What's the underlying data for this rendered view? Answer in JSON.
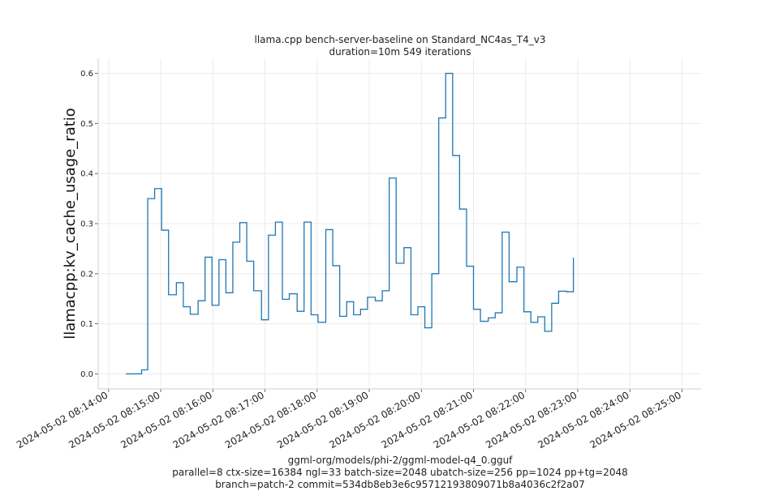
{
  "chart_data": {
    "type": "line",
    "title": "llama.cpp bench-server-baseline on Standard_NC4as_T4_v3",
    "subtitle": "duration=10m 549 iterations",
    "xlabel": "",
    "ylabel": "llamacpp:kv_cache_usage_ratio",
    "x_type": "time",
    "xlim": [
      "2024-05-02 08:13:48",
      "2024-05-02 08:25:22"
    ],
    "ylim": [
      -0.03,
      0.63
    ],
    "y_ticks": [
      0.0,
      0.1,
      0.2,
      0.3,
      0.4,
      0.5,
      0.6
    ],
    "y_tick_labels": [
      "0.0",
      "0.1",
      "0.2",
      "0.3",
      "0.4",
      "0.5",
      "0.6"
    ],
    "x_ticks": [
      "2024-05-02 08:14:00",
      "2024-05-02 08:15:00",
      "2024-05-02 08:16:00",
      "2024-05-02 08:17:00",
      "2024-05-02 08:18:00",
      "2024-05-02 08:19:00",
      "2024-05-02 08:20:00",
      "2024-05-02 08:21:00",
      "2024-05-02 08:22:00",
      "2024-05-02 08:23:00",
      "2024-05-02 08:24:00",
      "2024-05-02 08:25:00"
    ],
    "x_tick_labels": [
      "2024-05-02 08:14:00",
      "2024-05-02 08:15:00",
      "2024-05-02 08:16:00",
      "2024-05-02 08:17:00",
      "2024-05-02 08:18:00",
      "2024-05-02 08:19:00",
      "2024-05-02 08:20:00",
      "2024-05-02 08:21:00",
      "2024-05-02 08:22:00",
      "2024-05-02 08:23:00",
      "2024-05-02 08:24:00",
      "2024-05-02 08:25:00"
    ],
    "grid": true,
    "series": [
      {
        "color": "#1f77b4",
        "points": [
          [
            "2024-05-02 08:14:20",
            0.0
          ],
          [
            "2024-05-02 08:14:38",
            0.0
          ],
          [
            "2024-05-02 08:14:38",
            0.008
          ],
          [
            "2024-05-02 08:14:45",
            0.008
          ],
          [
            "2024-05-02 08:14:45",
            0.35
          ],
          [
            "2024-05-02 08:14:53",
            0.35
          ],
          [
            "2024-05-02 08:14:53",
            0.37
          ],
          [
            "2024-05-02 08:15:01",
            0.37
          ],
          [
            "2024-05-02 08:15:01",
            0.287
          ],
          [
            "2024-05-02 08:15:09",
            0.287
          ],
          [
            "2024-05-02 08:15:09",
            0.158
          ],
          [
            "2024-05-02 08:15:18",
            0.158
          ],
          [
            "2024-05-02 08:15:18",
            0.182
          ],
          [
            "2024-05-02 08:15:26",
            0.182
          ],
          [
            "2024-05-02 08:15:26",
            0.134
          ],
          [
            "2024-05-02 08:15:34",
            0.134
          ],
          [
            "2024-05-02 08:15:34",
            0.119
          ],
          [
            "2024-05-02 08:15:43",
            0.119
          ],
          [
            "2024-05-02 08:15:43",
            0.146
          ],
          [
            "2024-05-02 08:15:51",
            0.146
          ],
          [
            "2024-05-02 08:15:51",
            0.233
          ],
          [
            "2024-05-02 08:15:59",
            0.233
          ],
          [
            "2024-05-02 08:15:59",
            0.137
          ],
          [
            "2024-05-02 08:16:07",
            0.137
          ],
          [
            "2024-05-02 08:16:07",
            0.228
          ],
          [
            "2024-05-02 08:16:15",
            0.228
          ],
          [
            "2024-05-02 08:16:15",
            0.162
          ],
          [
            "2024-05-02 08:16:23",
            0.162
          ],
          [
            "2024-05-02 08:16:23",
            0.263
          ],
          [
            "2024-05-02 08:16:31",
            0.263
          ],
          [
            "2024-05-02 08:16:31",
            0.302
          ],
          [
            "2024-05-02 08:16:39",
            0.302
          ],
          [
            "2024-05-02 08:16:39",
            0.225
          ],
          [
            "2024-05-02 08:16:47",
            0.225
          ],
          [
            "2024-05-02 08:16:47",
            0.166
          ],
          [
            "2024-05-02 08:16:56",
            0.166
          ],
          [
            "2024-05-02 08:16:56",
            0.108
          ],
          [
            "2024-05-02 08:17:04",
            0.108
          ],
          [
            "2024-05-02 08:17:04",
            0.277
          ],
          [
            "2024-05-02 08:17:12",
            0.277
          ],
          [
            "2024-05-02 08:17:12",
            0.303
          ],
          [
            "2024-05-02 08:17:20",
            0.303
          ],
          [
            "2024-05-02 08:17:20",
            0.149
          ],
          [
            "2024-05-02 08:17:28",
            0.149
          ],
          [
            "2024-05-02 08:17:28",
            0.16
          ],
          [
            "2024-05-02 08:17:37",
            0.16
          ],
          [
            "2024-05-02 08:17:37",
            0.125
          ],
          [
            "2024-05-02 08:17:45",
            0.125
          ],
          [
            "2024-05-02 08:17:45",
            0.303
          ],
          [
            "2024-05-02 08:17:53",
            0.303
          ],
          [
            "2024-05-02 08:17:53",
            0.118
          ],
          [
            "2024-05-02 08:18:01",
            0.118
          ],
          [
            "2024-05-02 08:18:01",
            0.103
          ],
          [
            "2024-05-02 08:18:10",
            0.103
          ],
          [
            "2024-05-02 08:18:10",
            0.288
          ],
          [
            "2024-05-02 08:18:18",
            0.288
          ],
          [
            "2024-05-02 08:18:18",
            0.216
          ],
          [
            "2024-05-02 08:18:26",
            0.216
          ],
          [
            "2024-05-02 08:18:26",
            0.115
          ],
          [
            "2024-05-02 08:18:34",
            0.115
          ],
          [
            "2024-05-02 08:18:34",
            0.144
          ],
          [
            "2024-05-02 08:18:42",
            0.144
          ],
          [
            "2024-05-02 08:18:42",
            0.118
          ],
          [
            "2024-05-02 08:18:50",
            0.118
          ],
          [
            "2024-05-02 08:18:50",
            0.129
          ],
          [
            "2024-05-02 08:18:58",
            0.129
          ],
          [
            "2024-05-02 08:18:58",
            0.153
          ],
          [
            "2024-05-02 08:19:07",
            0.153
          ],
          [
            "2024-05-02 08:19:07",
            0.146
          ],
          [
            "2024-05-02 08:19:15",
            0.146
          ],
          [
            "2024-05-02 08:19:15",
            0.166
          ],
          [
            "2024-05-02 08:19:23",
            0.166
          ],
          [
            "2024-05-02 08:19:23",
            0.391
          ],
          [
            "2024-05-02 08:19:31",
            0.391
          ],
          [
            "2024-05-02 08:19:31",
            0.221
          ],
          [
            "2024-05-02 08:19:40",
            0.221
          ],
          [
            "2024-05-02 08:19:40",
            0.252
          ],
          [
            "2024-05-02 08:19:48",
            0.252
          ],
          [
            "2024-05-02 08:19:48",
            0.118
          ],
          [
            "2024-05-02 08:19:56",
            0.118
          ],
          [
            "2024-05-02 08:19:56",
            0.134
          ],
          [
            "2024-05-02 08:20:04",
            0.134
          ],
          [
            "2024-05-02 08:20:04",
            0.092
          ],
          [
            "2024-05-02 08:20:12",
            0.092
          ],
          [
            "2024-05-02 08:20:12",
            0.2
          ],
          [
            "2024-05-02 08:20:20",
            0.2
          ],
          [
            "2024-05-02 08:20:20",
            0.511
          ],
          [
            "2024-05-02 08:20:28",
            0.511
          ],
          [
            "2024-05-02 08:20:28",
            0.6
          ],
          [
            "2024-05-02 08:20:36",
            0.6
          ],
          [
            "2024-05-02 08:20:36",
            0.436
          ],
          [
            "2024-05-02 08:20:44",
            0.436
          ],
          [
            "2024-05-02 08:20:44",
            0.329
          ],
          [
            "2024-05-02 08:20:52",
            0.329
          ],
          [
            "2024-05-02 08:20:52",
            0.215
          ],
          [
            "2024-05-02 08:21:00",
            0.215
          ],
          [
            "2024-05-02 08:21:00",
            0.129
          ],
          [
            "2024-05-02 08:21:08",
            0.129
          ],
          [
            "2024-05-02 08:21:08",
            0.105
          ],
          [
            "2024-05-02 08:21:17",
            0.105
          ],
          [
            "2024-05-02 08:21:17",
            0.112
          ],
          [
            "2024-05-02 08:21:25",
            0.112
          ],
          [
            "2024-05-02 08:21:25",
            0.122
          ],
          [
            "2024-05-02 08:21:33",
            0.122
          ],
          [
            "2024-05-02 08:21:33",
            0.283
          ],
          [
            "2024-05-02 08:21:41",
            0.283
          ],
          [
            "2024-05-02 08:21:41",
            0.184
          ],
          [
            "2024-05-02 08:21:50",
            0.184
          ],
          [
            "2024-05-02 08:21:50",
            0.213
          ],
          [
            "2024-05-02 08:21:58",
            0.213
          ],
          [
            "2024-05-02 08:21:58",
            0.124
          ],
          [
            "2024-05-02 08:22:06",
            0.124
          ],
          [
            "2024-05-02 08:22:06",
            0.103
          ],
          [
            "2024-05-02 08:22:14",
            0.103
          ],
          [
            "2024-05-02 08:22:14",
            0.114
          ],
          [
            "2024-05-02 08:22:22",
            0.114
          ],
          [
            "2024-05-02 08:22:22",
            0.085
          ],
          [
            "2024-05-02 08:22:30",
            0.085
          ],
          [
            "2024-05-02 08:22:30",
            0.141
          ],
          [
            "2024-05-02 08:22:38",
            0.141
          ],
          [
            "2024-05-02 08:22:38",
            0.165
          ],
          [
            "2024-05-02 08:22:47",
            0.165
          ],
          [
            "2024-05-02 08:22:47",
            0.164
          ],
          [
            "2024-05-02 08:22:55",
            0.164
          ],
          [
            "2024-05-02 08:22:55",
            0.232
          ]
        ]
      }
    ]
  },
  "footer": {
    "line1": "ggml-org/models/phi-2/ggml-model-q4_0.gguf",
    "line2": "parallel=8 ctx-size=16384 ngl=33 batch-size=2048 ubatch-size=256 pp=1024 pp+tg=2048",
    "line3": "branch=patch-2 commit=534db8eb3e6c95712193809071b8a4036c2f2a07"
  }
}
